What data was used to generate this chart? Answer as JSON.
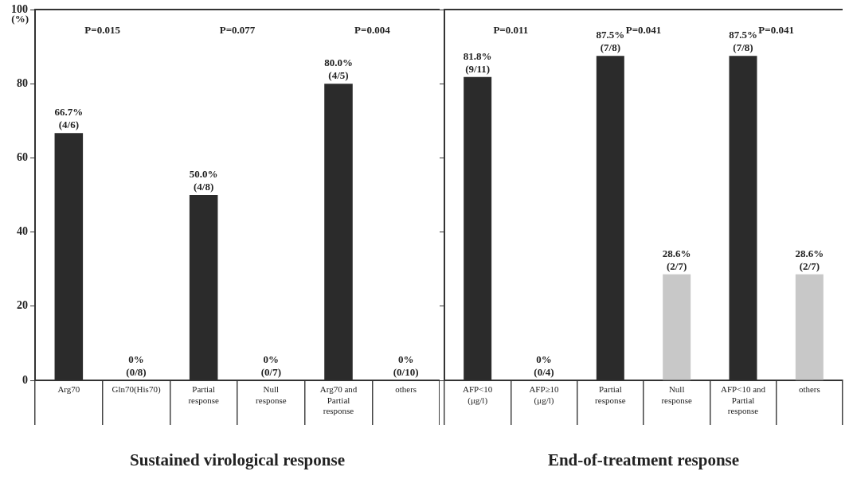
{
  "chart_data": [
    {
      "type": "bar",
      "xlabel": "Sustained virological response",
      "ylabel": "(%)",
      "categories": [
        "Arg70",
        "Gln70(His70)",
        "Partial response",
        "Null response",
        "Arg70 and Partial response",
        "others"
      ],
      "values": [
        66.7,
        0,
        50.0,
        0,
        80.0,
        0
      ],
      "colors": [
        "#2b2b2b",
        "#2b2b2b",
        "#2b2b2b",
        "#2b2b2b",
        "#2b2b2b",
        "#2b2b2b"
      ],
      "value_labels": [
        "66.7% (4/6)",
        "0% (0/8)",
        "50.0% (4/8)",
        "0% (0/7)",
        "80.0% (4/5)",
        "0% (0/10)"
      ],
      "annotations": [
        "P=0.015",
        "P=0.077",
        "P=0.004"
      ],
      "ylim": [
        0,
        100
      ],
      "yticks": [
        0,
        20,
        40,
        60,
        80,
        100
      ],
      "grid": false,
      "legend": false
    },
    {
      "type": "bar",
      "xlabel": "End-of-treatment response",
      "categories": [
        "AFP<10 (μg/l)",
        "AFP≥10 (μg/l)",
        "Partial response",
        "Null response",
        "AFP<10 and Partial response",
        "others"
      ],
      "values": [
        81.8,
        0,
        87.5,
        28.6,
        87.5,
        28.6
      ],
      "colors": [
        "#2b2b2b",
        "#2b2b2b",
        "#2b2b2b",
        "#c8c8c8",
        "#2b2b2b",
        "#c8c8c8"
      ],
      "value_labels": [
        "81.8% (9/11)",
        "0% (0/4)",
        "87.5% (7/8)",
        "28.6% (2/7)",
        "87.5% (7/8)",
        "28.6% (2/7)"
      ],
      "annotations": [
        "P=0.011",
        "P=0.041",
        "P=0.041"
      ],
      "ylim": [
        0,
        100
      ],
      "yticks": [
        0,
        20,
        40,
        60,
        80,
        100
      ],
      "tick_labels": "x",
      "grid": false,
      "legend": false
    }
  ]
}
